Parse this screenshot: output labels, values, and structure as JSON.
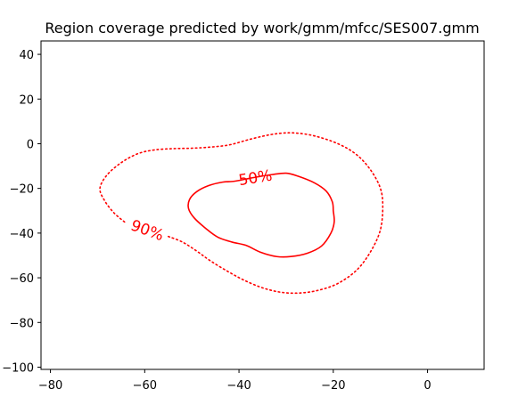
{
  "chart_data": {
    "type": "line",
    "title": "Region coverage predicted by work/gmm/mfcc/SES007.gmm",
    "xlim": [
      -82,
      12
    ],
    "ylim": [
      -101,
      46
    ],
    "x_ticks": [
      -80,
      -60,
      -40,
      -20,
      0
    ],
    "y_ticks": [
      -100,
      -80,
      -60,
      -40,
      -20,
      0,
      20,
      40
    ],
    "x_tick_labels": [
      "−80",
      "−60",
      "−40",
      "−20",
      "0"
    ],
    "y_tick_labels": [
      "−100",
      "−80",
      "−60",
      "−40",
      "−20",
      "0",
      "20",
      "40"
    ],
    "grid": false,
    "color": "#ff0000",
    "series": [
      {
        "name": "50%",
        "style": "solid",
        "label_at": [
          -36.5,
          -15.5
        ],
        "label_rotation": -9,
        "gap": [
          [
            -42,
            -16.8
          ],
          [
            -30,
            -13
          ]
        ],
        "points": [
          [
            -20,
            -30
          ],
          [
            -20.2,
            -26
          ],
          [
            -21.5,
            -21.2
          ],
          [
            -24,
            -17.5
          ],
          [
            -27.5,
            -14.5
          ],
          [
            -30,
            -13.2
          ],
          [
            -33,
            -13.8
          ],
          [
            -36,
            -14.8
          ],
          [
            -38.5,
            -15.8
          ],
          [
            -41,
            -16.8
          ],
          [
            -43.5,
            -17.2
          ],
          [
            -46.5,
            -18.8
          ],
          [
            -49,
            -21.5
          ],
          [
            -50.5,
            -25
          ],
          [
            -50.7,
            -29
          ],
          [
            -49.5,
            -33.2
          ],
          [
            -47,
            -38
          ],
          [
            -44.5,
            -41.8
          ],
          [
            -41.5,
            -44
          ],
          [
            -38.5,
            -45.5
          ],
          [
            -35.5,
            -48.5
          ],
          [
            -32,
            -50.5
          ],
          [
            -29,
            -50.5
          ],
          [
            -25.5,
            -49
          ],
          [
            -22.5,
            -45.8
          ],
          [
            -20.5,
            -40
          ],
          [
            -19.8,
            -35
          ],
          [
            -20,
            -30
          ]
        ]
      },
      {
        "name": "90%",
        "style": "dotted",
        "label_at": [
          -59.5,
          -39
        ],
        "label_rotation": 20,
        "gap": [
          [
            -64,
            -35.5
          ],
          [
            -55,
            -41.5
          ]
        ],
        "points": [
          [
            -9.5,
            -28
          ],
          [
            -10,
            -20
          ],
          [
            -12,
            -12
          ],
          [
            -15,
            -5
          ],
          [
            -19,
            0
          ],
          [
            -24,
            3.5
          ],
          [
            -28,
            4.8
          ],
          [
            -31,
            4.7
          ],
          [
            -34,
            3.8
          ],
          [
            -38,
            1.8
          ],
          [
            -42,
            -0.5
          ],
          [
            -46,
            -1.5
          ],
          [
            -50,
            -2
          ],
          [
            -54,
            -2.2
          ],
          [
            -58,
            -2.8
          ],
          [
            -61.5,
            -4.5
          ],
          [
            -65,
            -8.5
          ],
          [
            -68,
            -14
          ],
          [
            -69.5,
            -20
          ],
          [
            -68.5,
            -25.5
          ],
          [
            -66.5,
            -31
          ],
          [
            -64,
            -35.5
          ],
          [
            -61,
            -38.5
          ],
          [
            -58,
            -40.5
          ],
          [
            -55,
            -41.5
          ],
          [
            -52,
            -44
          ],
          [
            -49,
            -48
          ],
          [
            -46,
            -52.5
          ],
          [
            -42.5,
            -57
          ],
          [
            -39,
            -61
          ],
          [
            -35,
            -64.5
          ],
          [
            -31,
            -66.5
          ],
          [
            -27,
            -66.8
          ],
          [
            -23,
            -65.5
          ],
          [
            -19,
            -62.5
          ],
          [
            -15,
            -56.5
          ],
          [
            -12,
            -48
          ],
          [
            -10,
            -38.5
          ],
          [
            -9.5,
            -28
          ]
        ]
      }
    ]
  }
}
